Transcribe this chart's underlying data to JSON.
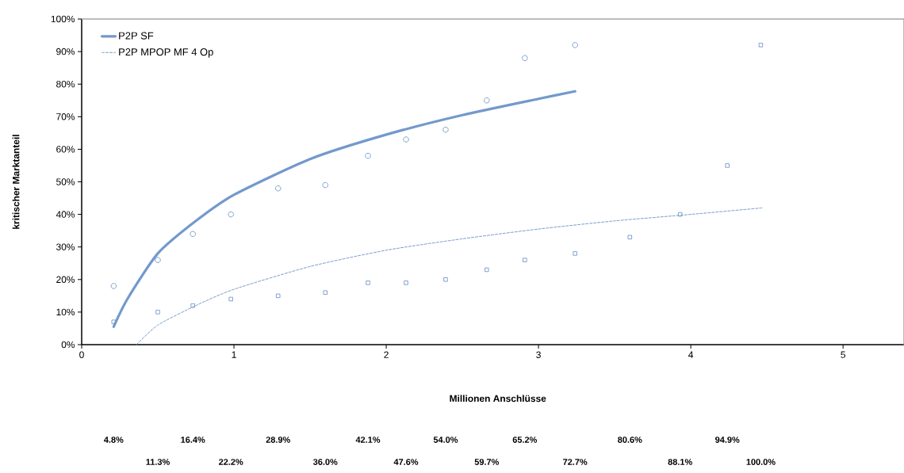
{
  "chart_data": {
    "type": "scatter",
    "xlabel": "Millionen Anschlüsse",
    "ylabel": "kritischer Marktanteil",
    "xlim": [
      0,
      5.4
    ],
    "xticks": [
      0,
      1,
      2,
      3,
      4,
      5
    ],
    "ylim": [
      0,
      100
    ],
    "yticks": [
      {
        "value": 0,
        "label": "0%"
      },
      {
        "value": 10,
        "label": "10%"
      },
      {
        "value": 20,
        "label": "20%"
      },
      {
        "value": 30,
        "label": "30%"
      },
      {
        "value": 40,
        "label": "40%"
      },
      {
        "value": 50,
        "label": "50%"
      },
      {
        "value": 60,
        "label": "60%"
      },
      {
        "value": 70,
        "label": "70%"
      },
      {
        "value": 80,
        "label": "80%"
      },
      {
        "value": 90,
        "label": "90%"
      },
      {
        "value": 100,
        "label": "100%"
      }
    ],
    "grid": false,
    "legend": "top left",
    "series": [
      {
        "name": "P2P SF",
        "type": "line",
        "color": "#7399cc",
        "marker": "none",
        "line_style": "solid",
        "x": [
          0.21,
          0.3,
          0.5,
          0.75,
          1,
          1.5,
          2,
          2.5,
          3,
          3.24
        ],
        "values": [
          5.5,
          14,
          28,
          38,
          46,
          57,
          64.5,
          70.5,
          75.5,
          77.8
        ]
      },
      {
        "name": "P2P MPOP MF 4 Op",
        "type": "line",
        "color": "#7399cc",
        "marker": "none",
        "line_style": "dashed",
        "x": [
          0.36,
          0.5,
          0.75,
          1,
          1.5,
          2,
          2.5,
          3,
          3.5,
          4,
          4.47
        ],
        "values": [
          0,
          6,
          12,
          17,
          24,
          29,
          32.5,
          35.5,
          38,
          40,
          42
        ]
      },
      {
        "color": "#7399cc",
        "marker": "circle",
        "x": [
          0.21,
          0.5,
          0.73,
          0.98,
          1.29,
          1.6,
          1.88,
          2.13,
          2.39,
          2.66,
          2.91,
          3.24
        ],
        "values": [
          18,
          26,
          34,
          40,
          48,
          49,
          58,
          63,
          66,
          75,
          88,
          92
        ]
      },
      {
        "color": "#7399cc",
        "marker": "square",
        "x": [
          0.21,
          0.5,
          0.73,
          0.98,
          1.29,
          1.6,
          1.88,
          2.13,
          2.39,
          2.66,
          2.91,
          3.24,
          3.6,
          3.93,
          4.24,
          4.46
        ],
        "values": [
          7,
          10,
          12,
          14,
          15,
          16,
          19,
          19,
          20,
          23,
          26,
          28,
          33,
          40,
          55,
          92
        ]
      }
    ],
    "annotations": [
      "4.8%",
      "11.3%",
      "16.4%",
      "22.2%",
      "28.9%",
      "36.0%",
      "42.1%",
      "47.6%",
      "54.0%",
      "59.7%",
      "65.2%",
      "72.7%",
      "80.6%",
      "88.1%",
      "94.9%",
      "100.0%"
    ]
  }
}
